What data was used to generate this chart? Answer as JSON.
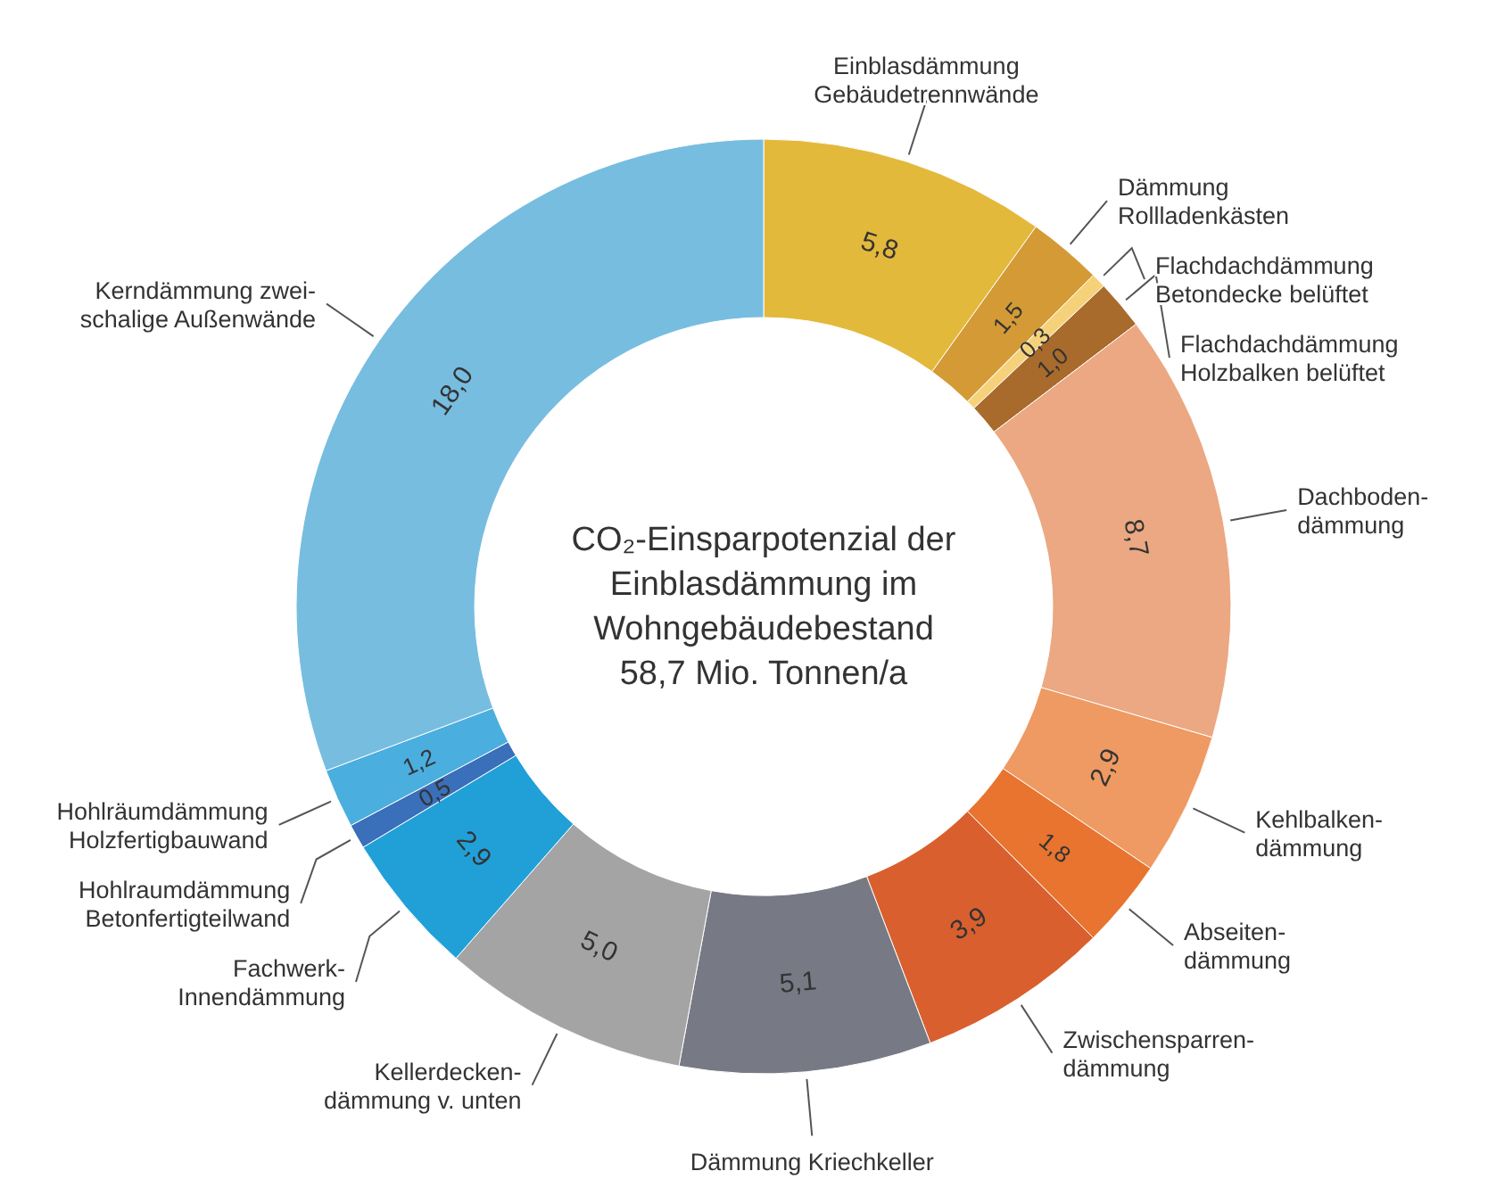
{
  "chart_data": {
    "type": "donut",
    "title": "CO₂-Einsparpotenzial der\nEinblasdämmung im\nWohngebäudebestand\n58,7 Mio. Tonnen/a",
    "categories": [
      "Einblasdämmung\nGebäudetrennwände",
      "Dämmung\nRollladenkästen",
      "Flachdachdämmung\nBetondecke belüftet",
      "Flachdachdämmung\nHolzbalken belüftet",
      "Dachboden-\ndämmung",
      "Kehlbalken-\ndämmung",
      "Abseiten-\ndämmung",
      "Zwischensparren-\ndämmung",
      "Dämmung Kriechkeller",
      "Kellerdecken-\ndämmung  v. unten",
      "Fachwerk-\nInnendämmung",
      "Hohlraumdämmung\nBetonfertigteilwand",
      "Hohlräumdämmung\nHolzfertigbauwand",
      "Kerndämmung zwei-\nschalige Außenwände"
    ],
    "values": [
      5.8,
      1.5,
      0.3,
      1.0,
      8.7,
      2.9,
      1.8,
      3.9,
      5.1,
      5.0,
      2.9,
      0.5,
      1.2,
      18.0
    ],
    "value_labels": [
      "5,8",
      "1,5",
      "0,3",
      "1,0",
      "8,7",
      "2,9",
      "1,8",
      "3,9",
      "5,1",
      "5,0",
      "2,9",
      "0,5",
      "1,2",
      "18,0"
    ],
    "colors": [
      "#e3b93c",
      "#d49a35",
      "#f5d27a",
      "#a86b2c",
      "#eba882",
      "#ee9a62",
      "#e8742f",
      "#d9602e",
      "#777a85",
      "#a4a4a4",
      "#21a0d8",
      "#3a6fba",
      "#4aaedf",
      "#77bde0"
    ]
  }
}
